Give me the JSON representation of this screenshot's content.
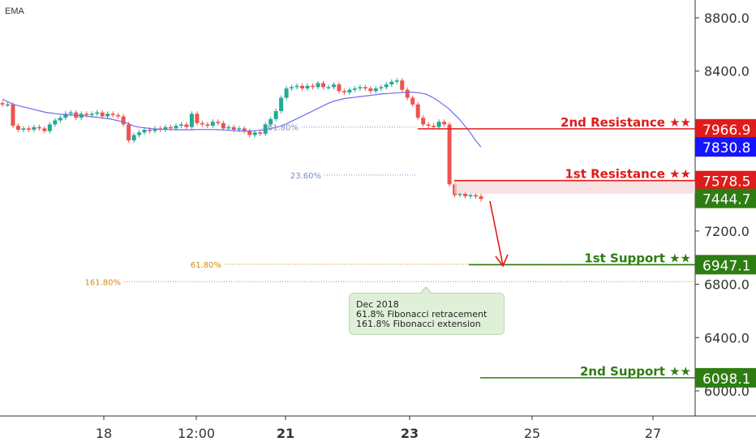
{
  "indicator_label": "EMA",
  "colors": {
    "up": "#22ab94",
    "down": "#ef5350",
    "resistance": "#e01b1b",
    "support": "#2e7d12",
    "ema": "#6c6cf0",
    "fib_blue": "#7a8cc8",
    "fib_orange": "#d28a1a",
    "current": "#1515ff"
  },
  "chart_data": {
    "type": "candlestick",
    "title": "",
    "xlabel": "",
    "ylabel": "",
    "x_ticks": [
      "18",
      "12:00",
      "21",
      "23",
      "25",
      "27"
    ],
    "y_ticks": [
      "8800.0",
      "8400.0",
      "7200.0",
      "6800.0",
      "6400.0",
      "6000.0"
    ],
    "y_range": [
      5850,
      8960
    ],
    "closes": [
      8150,
      8150,
      7990,
      7960,
      7970,
      7960,
      7980,
      7970,
      7950,
      8000,
      8030,
      8050,
      8080,
      8090,
      8050,
      8080,
      8070,
      8080,
      8090,
      8060,
      8080,
      8070,
      8060,
      8000,
      7880,
      7920,
      7940,
      7960,
      7950,
      7970,
      7960,
      7980,
      7970,
      7990,
      8000,
      7980,
      8080,
      8010,
      8000,
      7990,
      8020,
      8010,
      7970,
      7980,
      7960,
      7970,
      7950,
      7920,
      7940,
      7930,
      8000,
      8040,
      8100,
      8200,
      8270,
      8280,
      8290,
      8270,
      8290,
      8280,
      8310,
      8280,
      8280,
      8300,
      8250,
      8240,
      8260,
      8270,
      8280,
      8270,
      8250,
      8270,
      8280,
      8300,
      8320,
      8330,
      8260,
      8200,
      8150,
      8050,
      8000,
      7990,
      7980,
      8020,
      8000,
      7550,
      7470,
      7480,
      7460,
      7470,
      7460,
      7440
    ],
    "ema": [
      8190,
      8170,
      8150,
      8140,
      8130,
      8120,
      8110,
      8100,
      8090,
      8085,
      8080,
      8075,
      8070,
      8070,
      8068,
      8065,
      8060,
      8055,
      8050,
      8045,
      8040,
      8030,
      8020,
      8010,
      7990,
      7980,
      7975,
      7970,
      7965,
      7963,
      7962,
      7961,
      7960,
      7960,
      7960,
      7960,
      7962,
      7962,
      7962,
      7961,
      7960,
      7958,
      7955,
      7952,
      7950,
      7950,
      7952,
      7955,
      7960,
      7965,
      7975,
      7985,
      8000,
      8020,
      8040,
      8060,
      8080,
      8100,
      8120,
      8140,
      8160,
      8175,
      8185,
      8195,
      8200,
      8205,
      8210,
      8215,
      8220,
      8225,
      8230,
      8232,
      8235,
      8238,
      8240,
      8242,
      8240,
      8235,
      8225,
      8205,
      8180,
      8150,
      8120,
      8080,
      8040,
      7990,
      7940,
      7880,
      7830
    ],
    "levels": [
      {
        "name": "2nd Resistance ★★",
        "value": "7966.9",
        "price": 7966.9,
        "kind": "resistance"
      },
      {
        "name": "1st Resistance ★★",
        "value": "7578.5",
        "price": 7578.5,
        "kind": "resistance"
      },
      {
        "name": "1st Support ★★",
        "value": "6947.1",
        "price": 6947.1,
        "kind": "support"
      },
      {
        "name": "2nd Support ★★",
        "value": "6098.1",
        "price": 6098.1,
        "kind": "support"
      }
    ],
    "fib_lines": [
      {
        "label": "61.80%",
        "price": 7980,
        "color": "blue"
      },
      {
        "label": "23.60%",
        "price": 7620,
        "color": "blue"
      },
      {
        "label": "61.80%",
        "price": 6950,
        "color": "orange"
      },
      {
        "label": "161.80%",
        "price": 6820,
        "color": "orange"
      }
    ],
    "price_tags": [
      {
        "value": "7830.8",
        "price": 7830.8,
        "kind": "current"
      },
      {
        "value": "7444.7",
        "price": 7444.7,
        "kind": "last"
      }
    ]
  },
  "annotation": {
    "line1": "Dec 2018",
    "line2": "61.8% Fibonacci retracement",
    "line3": "161.8% Fibonacci extension"
  }
}
